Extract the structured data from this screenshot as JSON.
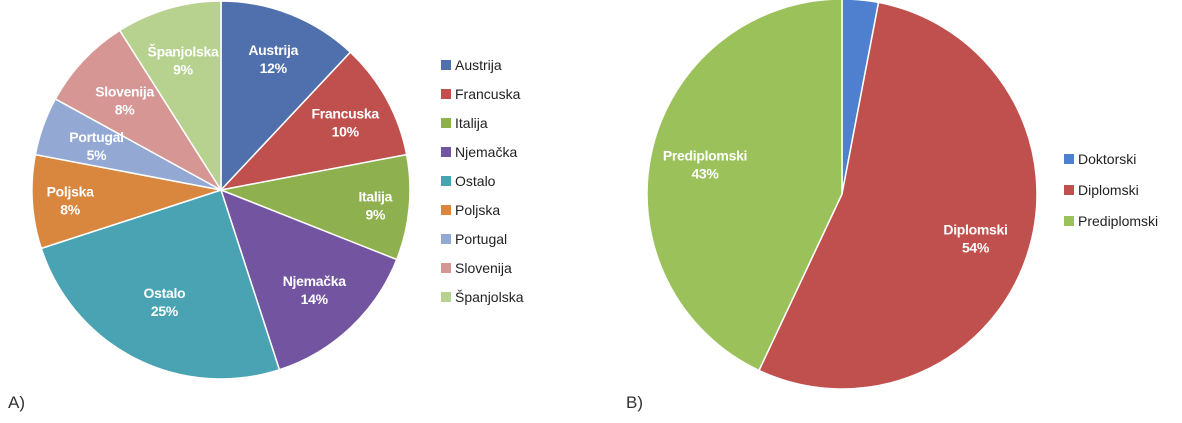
{
  "chart_data": [
    {
      "type": "pie",
      "panel_label": "A)",
      "categories": [
        "Austrija",
        "Francuska",
        "Italija",
        "Njemačka",
        "Ostalo",
        "Poljska",
        "Portugal",
        "Slovenija",
        "Španjolska"
      ],
      "values": [
        12,
        10,
        9,
        14,
        25,
        8,
        5,
        8,
        9
      ],
      "value_labels": [
        "12%",
        "10%",
        "9%",
        "14%",
        "25%",
        "8%",
        "5%",
        "8%",
        "9%"
      ],
      "colors": [
        "#4f6fad",
        "#c0504d",
        "#8fb04f",
        "#7254a0",
        "#4aa3b2",
        "#d9873f",
        "#93a9d3",
        "#d59694",
        "#b6d28e"
      ],
      "legend_placement": "right",
      "start_angle_deg": 0,
      "direction": "clockwise"
    },
    {
      "type": "pie",
      "panel_label": "B)",
      "categories": [
        "Doktorski",
        "Diplomski",
        "Prediplomski"
      ],
      "values": [
        3,
        54,
        43
      ],
      "value_labels": [
        "",
        "54%",
        "43%"
      ],
      "colors": [
        "#4f7fcf",
        "#c0504d",
        "#9bc25a"
      ],
      "legend_placement": "right",
      "start_angle_deg": 0,
      "direction": "clockwise"
    }
  ]
}
